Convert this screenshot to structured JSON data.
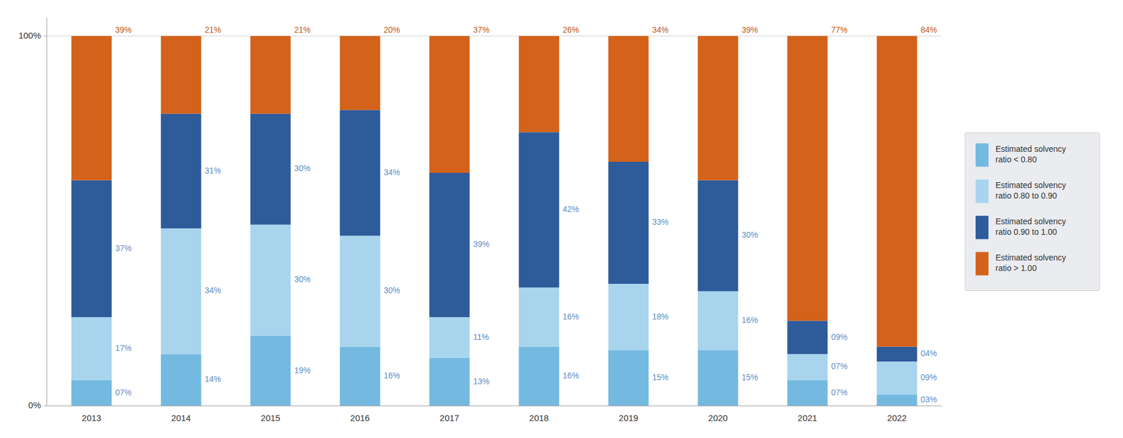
{
  "chart_data": {
    "type": "bar",
    "stacked": true,
    "categories": [
      "2013",
      "2014",
      "2015",
      "2016",
      "2017",
      "2018",
      "2019",
      "2020",
      "2021",
      "2022"
    ],
    "series": [
      {
        "name": "Estimated solvency\nratio < 0.80",
        "color": "#74B9E0",
        "values": [
          7,
          14,
          19,
          16,
          13,
          16,
          15,
          15,
          7,
          3
        ],
        "value_labels": [
          "07%",
          "14%",
          "19%",
          "16%",
          "13%",
          "16%",
          "15%",
          "15%",
          "07%",
          "03%"
        ]
      },
      {
        "name": "Estimated solvency\nratio 0.80 to 0.90",
        "color": "#A8D4EE",
        "values": [
          17,
          34,
          30,
          30,
          11,
          16,
          18,
          16,
          7,
          9
        ],
        "value_labels": [
          "17%",
          "34%",
          "30%",
          "30%",
          "11%",
          "16%",
          "18%",
          "16%",
          "07%",
          "09%"
        ]
      },
      {
        "name": "Estimated solvency\nratio 0.90 to 1.00",
        "color": "#2E5B9A",
        "values": [
          37,
          31,
          30,
          34,
          39,
          42,
          33,
          30,
          9,
          4
        ],
        "value_labels": [
          "37%",
          "31%",
          "30%",
          "34%",
          "39%",
          "42%",
          "33%",
          "30%",
          "09%",
          "04%"
        ]
      },
      {
        "name": "Estimated solvency\nratio > 1.00",
        "color": "#D4621A",
        "values": [
          39,
          21,
          21,
          20,
          37,
          26,
          34,
          39,
          77,
          84
        ],
        "value_labels": [
          "39%",
          "21%",
          "21%",
          "20%",
          "37%",
          "26%",
          "34%",
          "39%",
          "77%",
          "84%"
        ]
      }
    ],
    "ylim": [
      0,
      105
    ],
    "yticks": [
      {
        "value": 0,
        "label": "0%"
      },
      {
        "value": 100,
        "label": "100%"
      }
    ],
    "grid": true,
    "legend": "right",
    "data_labels": true
  }
}
